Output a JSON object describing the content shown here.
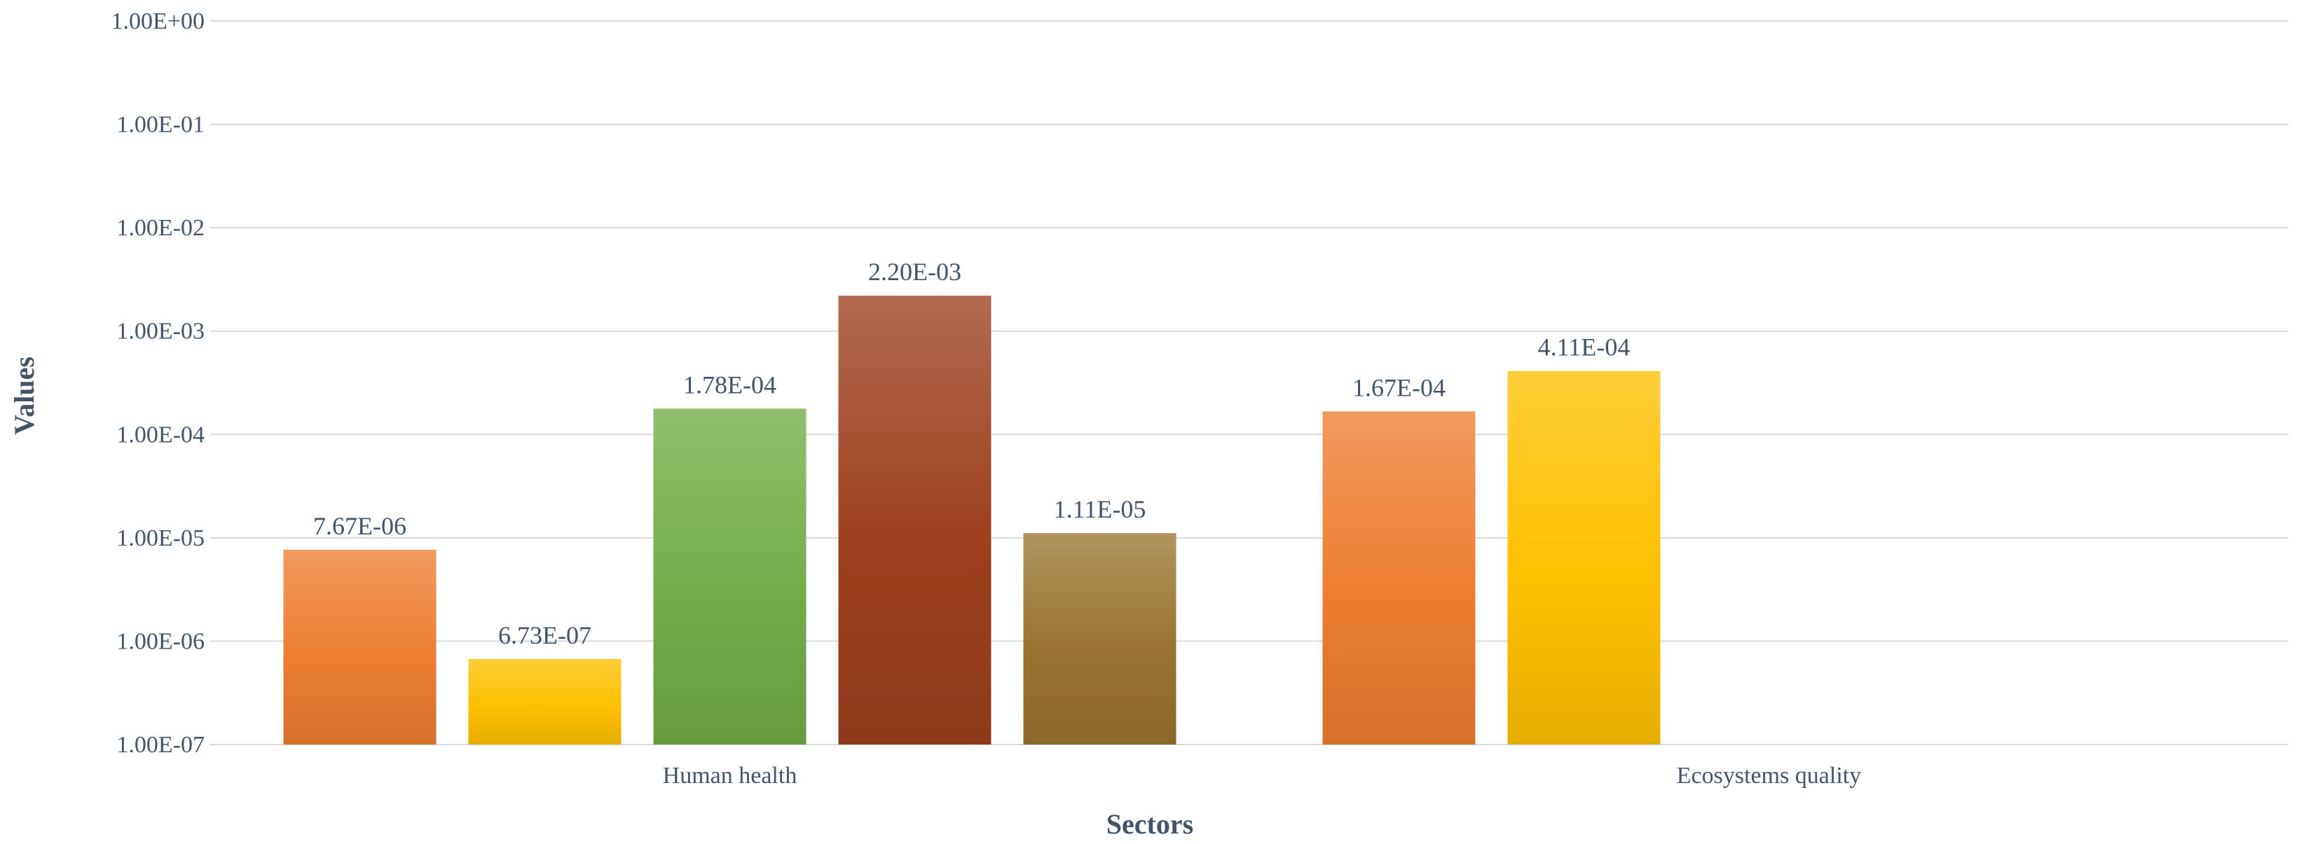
{
  "chart_data": {
    "type": "bar",
    "xlabel": "Sectors",
    "ylabel": "Values",
    "yscale": "log",
    "ylim": [
      1e-07,
      1
    ],
    "ytick_labels": [
      "1.00E-07",
      "1.00E-06",
      "1.00E-05",
      "1.00E-04",
      "1.00E-03",
      "1.00E-02",
      "1.00E-01",
      "1.00E+00"
    ],
    "grid": true,
    "categories": [
      "Human health",
      "Ecosystems quality"
    ],
    "groups": [
      {
        "category": "Human health",
        "bars": [
          {
            "value": 7.67e-06,
            "label": "7.67E-06",
            "color": "#ed7d31"
          },
          {
            "value": 6.73e-07,
            "label": "6.73E-07",
            "color": "#ffc000"
          },
          {
            "value": 0.000178,
            "label": "1.78E-04",
            "color": "#70ad47"
          },
          {
            "value": 0.0022,
            "label": "2.20E-03",
            "color": "#9e3f1f"
          },
          {
            "value": 1.11e-05,
            "label": "1.11E-05",
            "color": "#9a7430"
          }
        ]
      },
      {
        "category": "Ecosystems quality",
        "bars": [
          {
            "value": 0.000167,
            "label": "1.67E-04",
            "color": "#ed7d31"
          },
          {
            "value": 0.000411,
            "label": "4.11E-04",
            "color": "#ffc000"
          }
        ]
      }
    ]
  }
}
